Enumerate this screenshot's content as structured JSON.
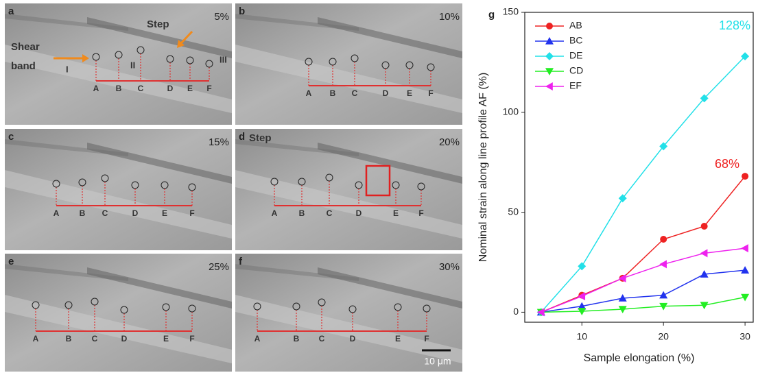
{
  "panels": [
    {
      "label": "a",
      "elongation": "5%",
      "points": [
        "A",
        "B",
        "C",
        "D",
        "E",
        "F"
      ]
    },
    {
      "label": "b",
      "elongation": "10%",
      "points": [
        "A",
        "B",
        "C",
        "D",
        "E",
        "F"
      ]
    },
    {
      "label": "c",
      "elongation": "15%",
      "points": [
        "A",
        "B",
        "C",
        "D",
        "E",
        "F"
      ]
    },
    {
      "label": "d",
      "elongation": "20%",
      "points": [
        "A",
        "B",
        "C",
        "D",
        "E",
        "F"
      ]
    },
    {
      "label": "e",
      "elongation": "25%",
      "points": [
        "A",
        "B",
        "C",
        "D",
        "E",
        "F"
      ]
    },
    {
      "label": "f",
      "elongation": "30%",
      "points": [
        "A",
        "B",
        "C",
        "D",
        "E",
        "F"
      ]
    }
  ],
  "annotations_a": {
    "shear_band": [
      "Shear",
      "band"
    ],
    "step": "Step",
    "regions": [
      "I",
      "II",
      "III"
    ]
  },
  "annotation_d": "Step",
  "scale_bar": "10 μm",
  "chart_data": {
    "type": "line",
    "panel_label": "g",
    "x_label": "Sample elongation (%)",
    "y_label": "Nominal strain along line  profile AF (%)",
    "x": [
      5,
      10,
      15,
      20,
      25,
      30
    ],
    "series": [
      {
        "name": "AB",
        "color": "#ee2222",
        "marker": "circle",
        "values": [
          0,
          8.5,
          17,
          36.5,
          43,
          68
        ]
      },
      {
        "name": "BC",
        "color": "#2233ee",
        "marker": "triangle-up",
        "values": [
          0,
          3,
          7,
          8.5,
          19,
          21
        ]
      },
      {
        "name": "DE",
        "color": "#22e0e8",
        "marker": "diamond",
        "values": [
          0,
          23,
          57,
          83,
          107,
          128
        ]
      },
      {
        "name": "CD",
        "color": "#22ee22",
        "marker": "triangle-down",
        "values": [
          0,
          0.5,
          1.5,
          3,
          3.5,
          7.5
        ]
      },
      {
        "name": "EF",
        "color": "#ee22ee",
        "marker": "triangle-left",
        "values": [
          0,
          8,
          17,
          24,
          29.5,
          32
        ]
      }
    ],
    "annotations": [
      {
        "text": "128%",
        "color": "#22e0e8"
      },
      {
        "text": "68%",
        "color": "#ee2222"
      }
    ],
    "xlim": [
      3,
      31
    ],
    "ylim": [
      -5,
      150
    ],
    "xticks": [
      10,
      20,
      30
    ],
    "yticks": [
      0,
      50,
      100,
      150
    ],
    "legend": "upper left"
  }
}
